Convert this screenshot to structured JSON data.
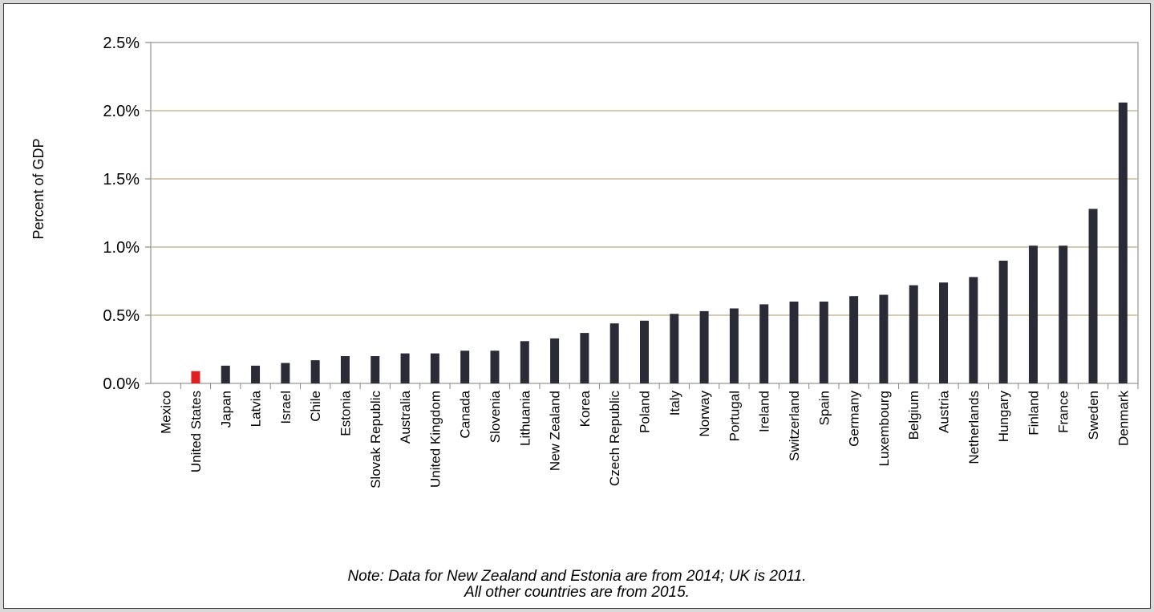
{
  "chart_data": {
    "type": "bar",
    "title": "",
    "ylabel": "Percent of GDP",
    "xlabel": "",
    "ylim": [
      0,
      2.5
    ],
    "yticks": [
      "0.0%",
      "0.5%",
      "1.0%",
      "1.5%",
      "2.0%",
      "2.5%"
    ],
    "grid": true,
    "categories": [
      "Mexico",
      "United States",
      "Japan",
      "Latvia",
      "Israel",
      "Chile",
      "Estonia",
      "Slovak Republic",
      "Australia",
      "United Kingdom",
      "Canada",
      "Slovenia",
      "Lithuania",
      "New Zealand",
      "Korea",
      "Czech Republic",
      "Poland",
      "Italy",
      "Norway",
      "Portugal",
      "Ireland",
      "Switzerland",
      "Spain",
      "Germany",
      "Luxembourg",
      "Belgium",
      "Austria",
      "Netherlands",
      "Hungary",
      "Finland",
      "France",
      "Sweden",
      "Denmark"
    ],
    "values": [
      0.0,
      0.09,
      0.13,
      0.13,
      0.15,
      0.17,
      0.2,
      0.2,
      0.22,
      0.22,
      0.24,
      0.24,
      0.31,
      0.33,
      0.37,
      0.44,
      0.46,
      0.51,
      0.53,
      0.55,
      0.58,
      0.6,
      0.6,
      0.64,
      0.65,
      0.72,
      0.74,
      0.78,
      0.9,
      1.01,
      1.01,
      1.28,
      2.06
    ],
    "colors": {
      "bar": "#2b2b38",
      "highlight": "#e02020",
      "grid": "#c9b99a"
    },
    "highlight_category": "United States"
  },
  "notes": {
    "line1": "Note: Data for New Zealand and Estonia are from 2014; UK is 2011.",
    "line2": "All other countries are from 2015."
  }
}
